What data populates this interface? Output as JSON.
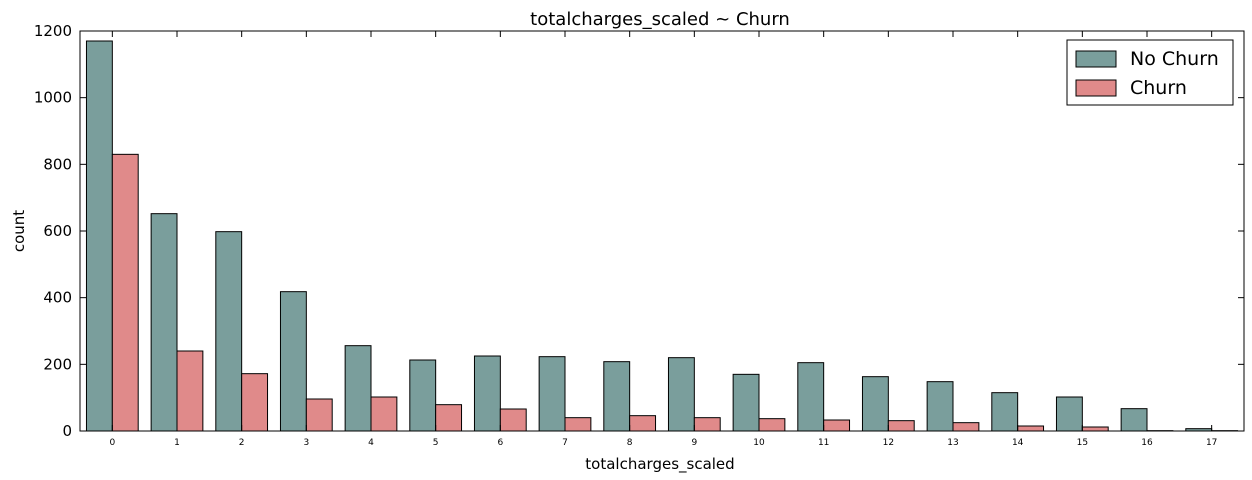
{
  "chart_data": {
    "type": "bar",
    "title": "totalcharges_scaled ~ Churn",
    "xlabel": "totalcharges_scaled",
    "ylabel": "count",
    "categories": [
      "0",
      "1",
      "2",
      "3",
      "4",
      "5",
      "6",
      "7",
      "8",
      "9",
      "10",
      "11",
      "12",
      "13",
      "14",
      "15",
      "16",
      "17"
    ],
    "ylim": [
      0,
      1200
    ],
    "yticks": [
      0,
      200,
      400,
      600,
      800,
      1000,
      1200
    ],
    "grid": false,
    "legend_position": "top-right",
    "series": [
      {
        "name": "No Churn",
        "color": "#7a9e9c",
        "values": [
          1170,
          652,
          598,
          418,
          256,
          213,
          225,
          223,
          208,
          220,
          170,
          205,
          163,
          148,
          115,
          102,
          67,
          7
        ]
      },
      {
        "name": "Churn",
        "color": "#e08a8a",
        "values": [
          830,
          240,
          172,
          96,
          102,
          79,
          66,
          40,
          46,
          40,
          37,
          33,
          31,
          25,
          15,
          12,
          1,
          1
        ]
      }
    ]
  }
}
